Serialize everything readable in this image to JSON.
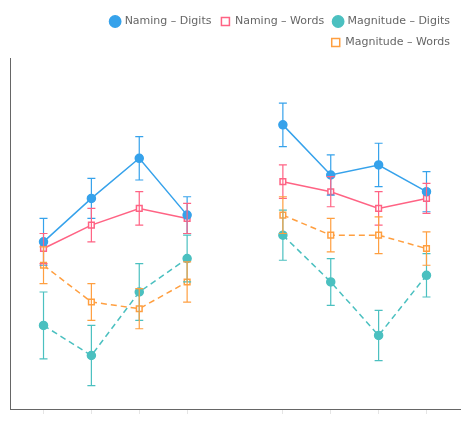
{
  "chart_data": {
    "type": "line",
    "x": [
      1,
      2,
      3,
      4,
      5,
      6,
      7,
      8,
      9
    ],
    "xlim": [
      0.3,
      9.7
    ],
    "xticks": [
      1,
      2,
      3,
      4,
      6,
      7,
      8,
      9
    ],
    "ylim": [
      2.0,
      12.5
    ],
    "tick_labels": false,
    "grid": false,
    "legend": "upper right",
    "series": [
      {
        "name": "Naming – Digits",
        "marker": "circle",
        "line_style": "solid",
        "values": [
          7.0,
          8.3,
          9.5,
          7.8,
          null,
          10.5,
          9.0,
          9.3,
          8.5
        ],
        "errors": [
          0.7,
          0.6,
          0.65,
          0.55,
          null,
          0.65,
          0.6,
          0.65,
          0.6
        ]
      },
      {
        "name": "Naming – Words",
        "marker": "square",
        "line_style": "solid",
        "values": [
          6.8,
          7.5,
          8.0,
          7.7,
          null,
          8.8,
          8.5,
          8.0,
          8.3
        ],
        "errors": [
          0.45,
          0.5,
          0.5,
          0.45,
          null,
          0.5,
          0.45,
          0.5,
          0.45
        ]
      },
      {
        "name": "Magnitude – Digits",
        "marker": "circle",
        "line_style": "dashed",
        "values": [
          4.5,
          3.6,
          5.5,
          6.5,
          null,
          7.2,
          5.8,
          4.2,
          6.0
        ],
        "errors": [
          1.0,
          0.9,
          0.85,
          0.7,
          null,
          0.75,
          0.7,
          0.75,
          0.65
        ]
      },
      {
        "name": "Magnitude – Words",
        "marker": "square",
        "line_style": "dashed",
        "values": [
          6.3,
          5.2,
          5.0,
          5.8,
          null,
          7.8,
          7.2,
          7.2,
          6.8
        ],
        "errors": [
          0.55,
          0.55,
          0.6,
          0.6,
          null,
          0.55,
          0.5,
          0.55,
          0.5
        ]
      }
    ]
  }
}
